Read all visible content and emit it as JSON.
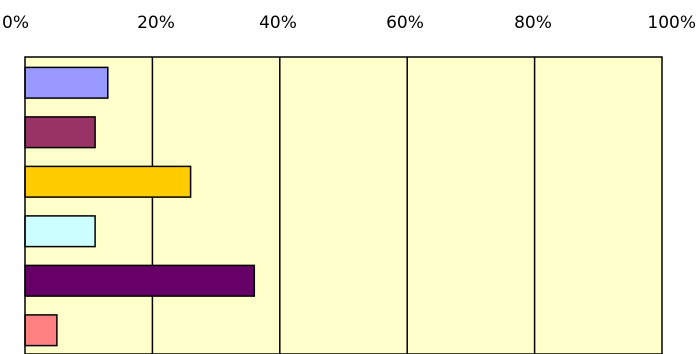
{
  "chart_data": {
    "type": "bar",
    "orientation": "horizontal",
    "xlim": [
      0,
      100
    ],
    "x_ticks": [
      "0%",
      "20%",
      "40%",
      "60%",
      "80%",
      "100%"
    ],
    "x_tick_values": [
      0,
      20,
      40,
      60,
      80,
      100
    ],
    "x_axis_position": "top",
    "grid": true,
    "legend": "none",
    "plot_background": "#FFFFCC",
    "categories": [
      "",
      "",
      "",
      "",
      "",
      ""
    ],
    "values": [
      13,
      11,
      26,
      11,
      36,
      5
    ],
    "colors": [
      "#9999FF",
      "#993366",
      "#FFCC00",
      "#CCFFFF",
      "#660066",
      "#FF8080"
    ]
  }
}
